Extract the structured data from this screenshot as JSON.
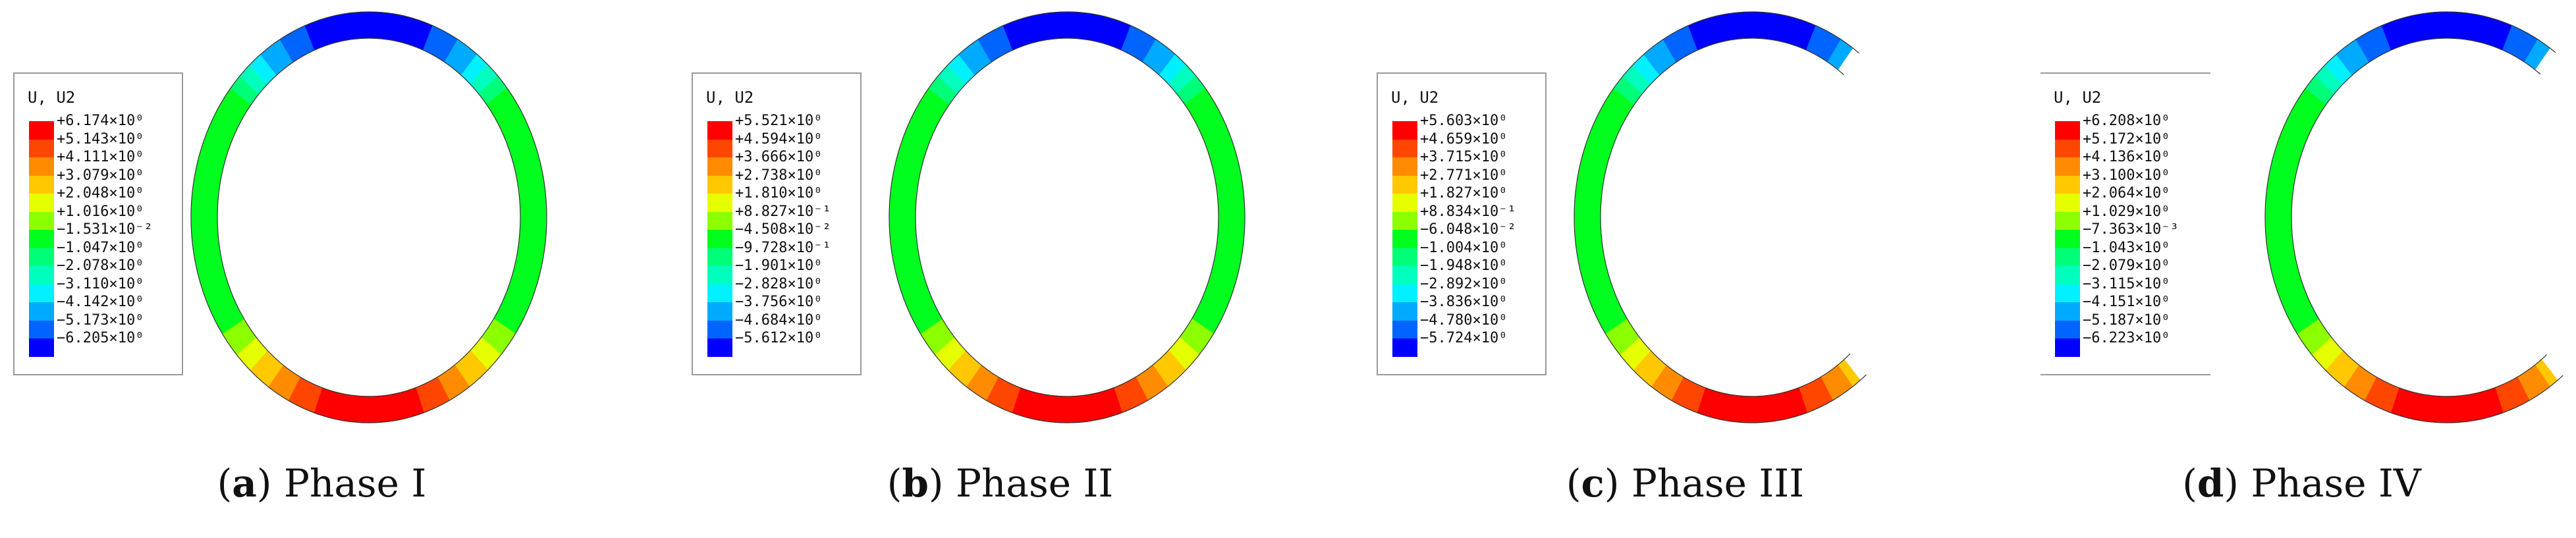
{
  "colormap": [
    "#ff0000",
    "#ff4600",
    "#ff8c00",
    "#ffc800",
    "#e6ff00",
    "#8cff00",
    "#00ff1e",
    "#00ff78",
    "#00ffbe",
    "#00f0ff",
    "#00aaff",
    "#0064ff",
    "#0000ff"
  ],
  "panels": [
    {
      "label": "a",
      "title": "Phase I",
      "legend_title": "U, U2",
      "legend_values": [
        "+6.174×10⁰",
        "+5.143×10⁰",
        "+4.111×10⁰",
        "+3.079×10⁰",
        "+2.048×10⁰",
        "+1.016×10⁰",
        "−1.531×10⁻²",
        "−1.047×10⁰",
        "−2.078×10⁰",
        "−3.110×10⁰",
        "−4.142×10⁰",
        "−5.173×10⁰",
        "−6.205×10⁰"
      ],
      "ring": "closed",
      "legend_style": "boxed"
    },
    {
      "label": "b",
      "title": "Phase II",
      "legend_title": "U, U2",
      "legend_values": [
        "+5.521×10⁰",
        "+4.594×10⁰",
        "+3.666×10⁰",
        "+2.738×10⁰",
        "+1.810×10⁰",
        "+8.827×10⁻¹",
        "−4.508×10⁻²",
        "−9.728×10⁻¹",
        "−1.901×10⁰",
        "−2.828×10⁰",
        "−3.756×10⁰",
        "−4.684×10⁰",
        "−5.612×10⁰"
      ],
      "ring": "closed",
      "legend_style": "boxed"
    },
    {
      "label": "c",
      "title": "Phase III",
      "legend_title": "U, U2",
      "legend_values": [
        "+5.603×10⁰",
        "+4.659×10⁰",
        "+3.715×10⁰",
        "+2.771×10⁰",
        "+1.827×10⁰",
        "+8.834×10⁻¹",
        "−6.048×10⁻²",
        "−1.004×10⁰",
        "−1.948×10⁰",
        "−2.892×10⁰",
        "−3.836×10⁰",
        "−4.780×10⁰",
        "−5.724×10⁰"
      ],
      "ring": "open",
      "legend_style": "boxed"
    },
    {
      "label": "d",
      "title": "Phase IV",
      "legend_title": "U, U2",
      "legend_values": [
        "+6.208×10⁰",
        "+5.172×10⁰",
        "+4.136×10⁰",
        "+3.100×10⁰",
        "+2.064×10⁰",
        "+1.029×10⁰",
        "−7.363×10⁻³",
        "−1.043×10⁰",
        "−2.079×10⁰",
        "−3.115×10⁰",
        "−4.151×10⁰",
        "−5.187×10⁰",
        "−6.223×10⁰"
      ],
      "ring": "open",
      "legend_style": "open"
    }
  ]
}
